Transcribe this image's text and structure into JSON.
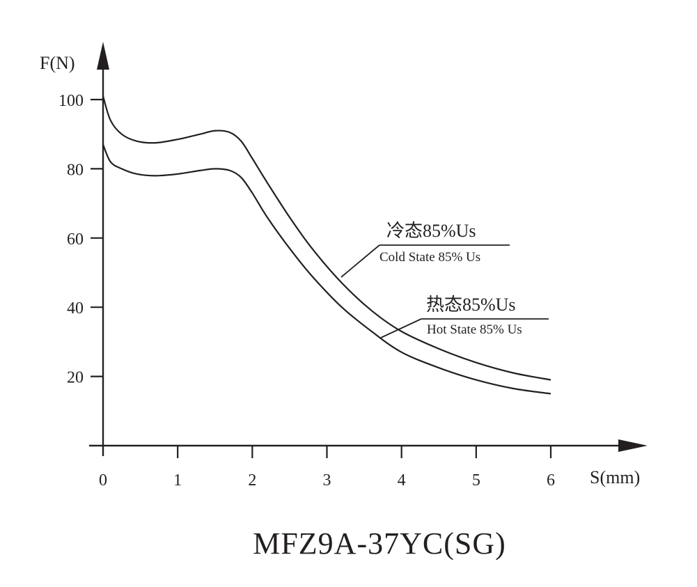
{
  "chart_data": {
    "type": "line",
    "title": "MFZ9A-37YC(SG)",
    "xlabel": "S(mm)",
    "ylabel": "F(N)",
    "xlim": [
      0,
      6
    ],
    "ylim": [
      0,
      100
    ],
    "x_ticks": [
      "0",
      "1",
      "2",
      "3",
      "4",
      "5",
      "6"
    ],
    "y_ticks": [
      "20",
      "40",
      "60",
      "80",
      "100"
    ],
    "grid": false,
    "legend": "none",
    "series": [
      {
        "name_cn": "冷态85%Us",
        "name": "Cold State 85% Us",
        "x": [
          0,
          0.1,
          0.25,
          0.45,
          0.7,
          1.0,
          1.3,
          1.5,
          1.7,
          1.85,
          2.0,
          2.2,
          2.5,
          2.8,
          3.2,
          3.6,
          4.0,
          4.5,
          5.0,
          5.5,
          6.0
        ],
        "y": [
          101,
          94,
          90,
          88,
          87.5,
          88.5,
          90,
          91,
          90.5,
          88,
          83,
          76,
          66,
          57,
          47,
          39,
          33,
          28,
          24,
          21,
          19
        ]
      },
      {
        "name_cn": "热态85%Us",
        "name": "Hot State 85% Us",
        "x": [
          0,
          0.1,
          0.25,
          0.45,
          0.7,
          1.0,
          1.3,
          1.5,
          1.7,
          1.85,
          2.0,
          2.2,
          2.5,
          2.8,
          3.2,
          3.6,
          4.0,
          4.5,
          5.0,
          5.5,
          6.0
        ],
        "y": [
          87,
          82,
          80,
          78.5,
          78,
          78.5,
          79.5,
          80,
          79.5,
          77.5,
          73,
          66,
          57,
          49,
          40,
          33,
          27,
          22.5,
          19,
          16.5,
          15
        ]
      }
    ]
  }
}
